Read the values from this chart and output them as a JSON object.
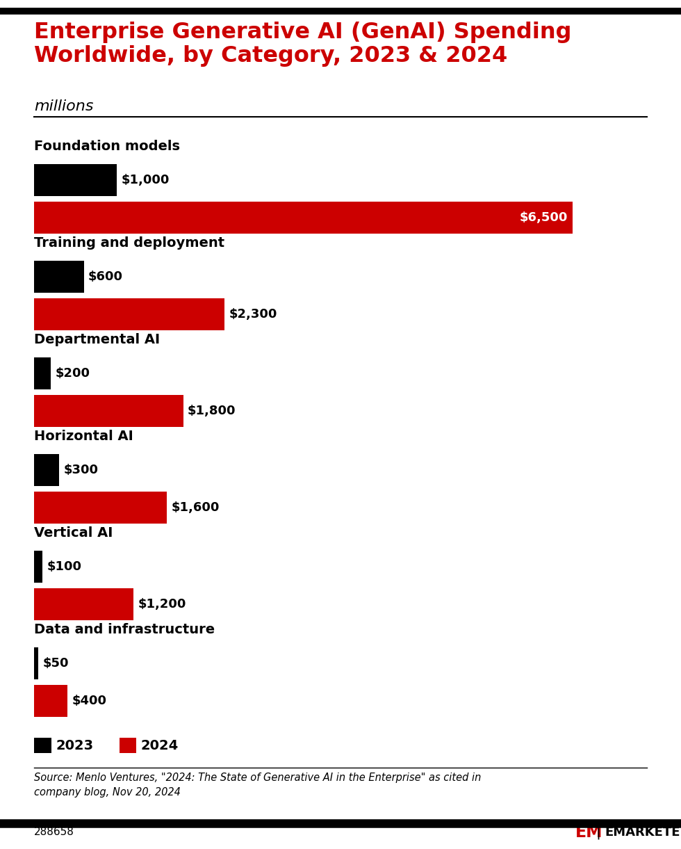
{
  "title": "Enterprise Generative AI (GenAI) Spending\nWorldwide, by Category, 2023 & 2024",
  "subtitle": "millions",
  "title_color": "#cc0000",
  "subtitle_color": "#000000",
  "categories": [
    "Foundation models",
    "Training and deployment",
    "Departmental AI",
    "Horizontal AI",
    "Vertical AI",
    "Data and infrastructure"
  ],
  "values_2023": [
    1000,
    600,
    200,
    300,
    100,
    50
  ],
  "values_2024": [
    6500,
    2300,
    1800,
    1600,
    1200,
    400
  ],
  "labels_2023": [
    "$1,000",
    "$600",
    "$200",
    "$300",
    "$100",
    "$50"
  ],
  "labels_2024": [
    "$6,500",
    "$2,300",
    "$1,800",
    "$1,600",
    "$1,200",
    "$400"
  ],
  "color_2023": "#000000",
  "color_2024": "#cc0000",
  "max_value": 6500,
  "source_text": "Source: Menlo Ventures, \"2024: The State of Generative AI in the Enterprise\" as cited in\ncompany blog, Nov 20, 2024",
  "chart_id": "288658",
  "background_color": "#ffffff"
}
